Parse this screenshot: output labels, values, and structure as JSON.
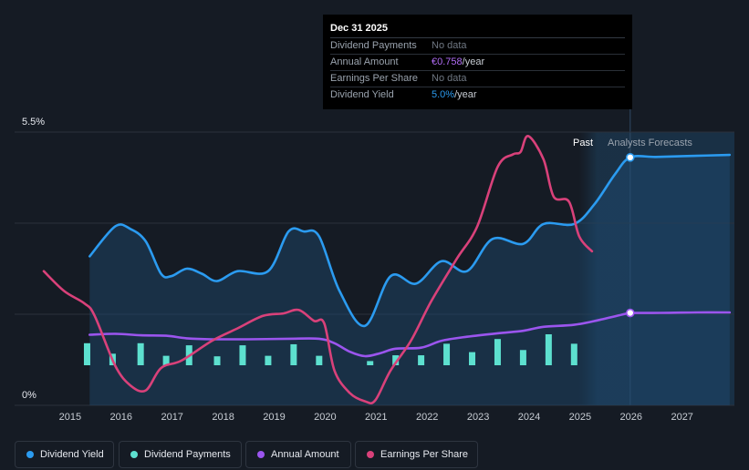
{
  "tooltip": {
    "date": "Dec 31 2025",
    "rows": [
      {
        "label": "Dividend Payments",
        "value": "No data",
        "unit": ""
      },
      {
        "label": "Annual Amount",
        "value": "€0.758",
        "unit": "/year"
      },
      {
        "label": "Earnings Per Share",
        "value": "No data",
        "unit": ""
      },
      {
        "label": "Dividend Yield",
        "value": "5.0%",
        "unit": "/year"
      }
    ]
  },
  "region_labels": {
    "past": "Past",
    "forecast": "Analysts Forecasts"
  },
  "legend": [
    {
      "label": "Dividend Yield",
      "color": "#2b9bf0"
    },
    {
      "label": "Dividend Payments",
      "color": "#5de0cf"
    },
    {
      "label": "Annual Amount",
      "color": "#9b55ee"
    },
    {
      "label": "Earnings Per Share",
      "color": "#d9417a"
    }
  ],
  "chart_data": {
    "type": "line",
    "title": "",
    "x_unit": "year",
    "xlim": [
      2014.0,
      2028.0
    ],
    "y_ticks": [
      {
        "value": 5.5,
        "label": "5.5%"
      },
      {
        "value": 0,
        "label": "0%"
      }
    ],
    "ylim": [
      0,
      5.5
    ],
    "x_ticks": [
      "2015",
      "2016",
      "2017",
      "2018",
      "2019",
      "2020",
      "2021",
      "2022",
      "2023",
      "2024",
      "2025",
      "2026",
      "2027"
    ],
    "past_end": 2025.0,
    "forecast_start": 2026.0,
    "series": [
      {
        "name": "Dividend Yield",
        "color": "#2b9bf0",
        "points": [
          [
            2015.4,
            3.0
          ],
          [
            2015.9,
            3.6
          ],
          [
            2016.2,
            3.55
          ],
          [
            2016.5,
            3.3
          ],
          [
            2016.8,
            2.65
          ],
          [
            2017.0,
            2.6
          ],
          [
            2017.3,
            2.75
          ],
          [
            2017.6,
            2.65
          ],
          [
            2017.9,
            2.5
          ],
          [
            2018.3,
            2.7
          ],
          [
            2018.9,
            2.7
          ],
          [
            2019.3,
            3.5
          ],
          [
            2019.6,
            3.5
          ],
          [
            2019.9,
            3.4
          ],
          [
            2020.3,
            2.3
          ],
          [
            2020.8,
            1.6
          ],
          [
            2021.3,
            2.6
          ],
          [
            2021.8,
            2.45
          ],
          [
            2022.3,
            2.9
          ],
          [
            2022.8,
            2.7
          ],
          [
            2023.3,
            3.35
          ],
          [
            2023.9,
            3.25
          ],
          [
            2024.3,
            3.65
          ],
          [
            2024.9,
            3.65
          ],
          [
            2025.3,
            4.05
          ],
          [
            2025.7,
            4.65
          ],
          [
            2026.0,
            4.99
          ],
          [
            2026.5,
            5.0
          ],
          [
            2027.2,
            5.02
          ],
          [
            2027.95,
            5.04
          ]
        ]
      },
      {
        "name": "Annual Amount",
        "color": "#9b55ee",
        "points": [
          [
            2015.4,
            1.42
          ],
          [
            2015.9,
            1.44
          ],
          [
            2016.4,
            1.41
          ],
          [
            2016.9,
            1.4
          ],
          [
            2017.3,
            1.35
          ],
          [
            2017.8,
            1.33
          ],
          [
            2018.5,
            1.33
          ],
          [
            2019.3,
            1.34
          ],
          [
            2019.9,
            1.34
          ],
          [
            2020.2,
            1.25
          ],
          [
            2020.5,
            1.08
          ],
          [
            2020.8,
            0.99
          ],
          [
            2021.1,
            1.05
          ],
          [
            2021.4,
            1.14
          ],
          [
            2021.9,
            1.16
          ],
          [
            2022.3,
            1.3
          ],
          [
            2022.8,
            1.38
          ],
          [
            2023.4,
            1.45
          ],
          [
            2023.9,
            1.5
          ],
          [
            2024.3,
            1.58
          ],
          [
            2024.9,
            1.62
          ],
          [
            2025.4,
            1.72
          ],
          [
            2025.9,
            1.84
          ],
          [
            2026.0,
            1.86
          ],
          [
            2026.6,
            1.86
          ],
          [
            2027.3,
            1.87
          ],
          [
            2027.95,
            1.87
          ]
        ]
      },
      {
        "name": "Earnings Per Share",
        "color": "#d9417a",
        "points": [
          [
            2014.5,
            2.7
          ],
          [
            2014.9,
            2.3
          ],
          [
            2015.3,
            2.05
          ],
          [
            2015.5,
            1.8
          ],
          [
            2015.9,
            0.8
          ],
          [
            2016.2,
            0.4
          ],
          [
            2016.5,
            0.3
          ],
          [
            2016.8,
            0.75
          ],
          [
            2017.2,
            0.9
          ],
          [
            2017.8,
            1.3
          ],
          [
            2018.3,
            1.55
          ],
          [
            2018.8,
            1.8
          ],
          [
            2019.2,
            1.85
          ],
          [
            2019.5,
            1.92
          ],
          [
            2019.8,
            1.7
          ],
          [
            2020.0,
            1.65
          ],
          [
            2020.2,
            0.7
          ],
          [
            2020.5,
            0.25
          ],
          [
            2020.8,
            0.08
          ],
          [
            2021.0,
            0.1
          ],
          [
            2021.3,
            0.7
          ],
          [
            2021.7,
            1.3
          ],
          [
            2022.1,
            2.1
          ],
          [
            2022.6,
            2.95
          ],
          [
            2023.0,
            3.6
          ],
          [
            2023.4,
            4.8
          ],
          [
            2023.7,
            5.05
          ],
          [
            2023.85,
            5.1
          ],
          [
            2024.0,
            5.42
          ],
          [
            2024.3,
            4.95
          ],
          [
            2024.5,
            4.2
          ],
          [
            2024.8,
            4.1
          ],
          [
            2025.0,
            3.4
          ],
          [
            2025.25,
            3.1
          ]
        ]
      }
    ],
    "bars": {
      "name": "Dividend Payments",
      "color": "#5de0cf",
      "points": [
        [
          2015.35,
          0.42
        ],
        [
          2015.85,
          0.22
        ],
        [
          2016.4,
          0.42
        ],
        [
          2016.9,
          0.18
        ],
        [
          2017.35,
          0.38
        ],
        [
          2017.9,
          0.17
        ],
        [
          2018.4,
          0.38
        ],
        [
          2018.9,
          0.18
        ],
        [
          2019.4,
          0.4
        ],
        [
          2019.9,
          0.18
        ],
        [
          2020.9,
          0.08
        ],
        [
          2021.4,
          0.19
        ],
        [
          2021.9,
          0.19
        ],
        [
          2022.4,
          0.41
        ],
        [
          2022.9,
          0.25
        ],
        [
          2023.4,
          0.5
        ],
        [
          2023.9,
          0.29
        ],
        [
          2024.4,
          0.59
        ],
        [
          2024.9,
          0.41
        ]
      ]
    },
    "markers": [
      {
        "series": "Dividend Yield",
        "x": 2026.0,
        "y": 4.99
      },
      {
        "series": "Annual Amount",
        "x": 2026.0,
        "y": 1.86
      }
    ]
  }
}
